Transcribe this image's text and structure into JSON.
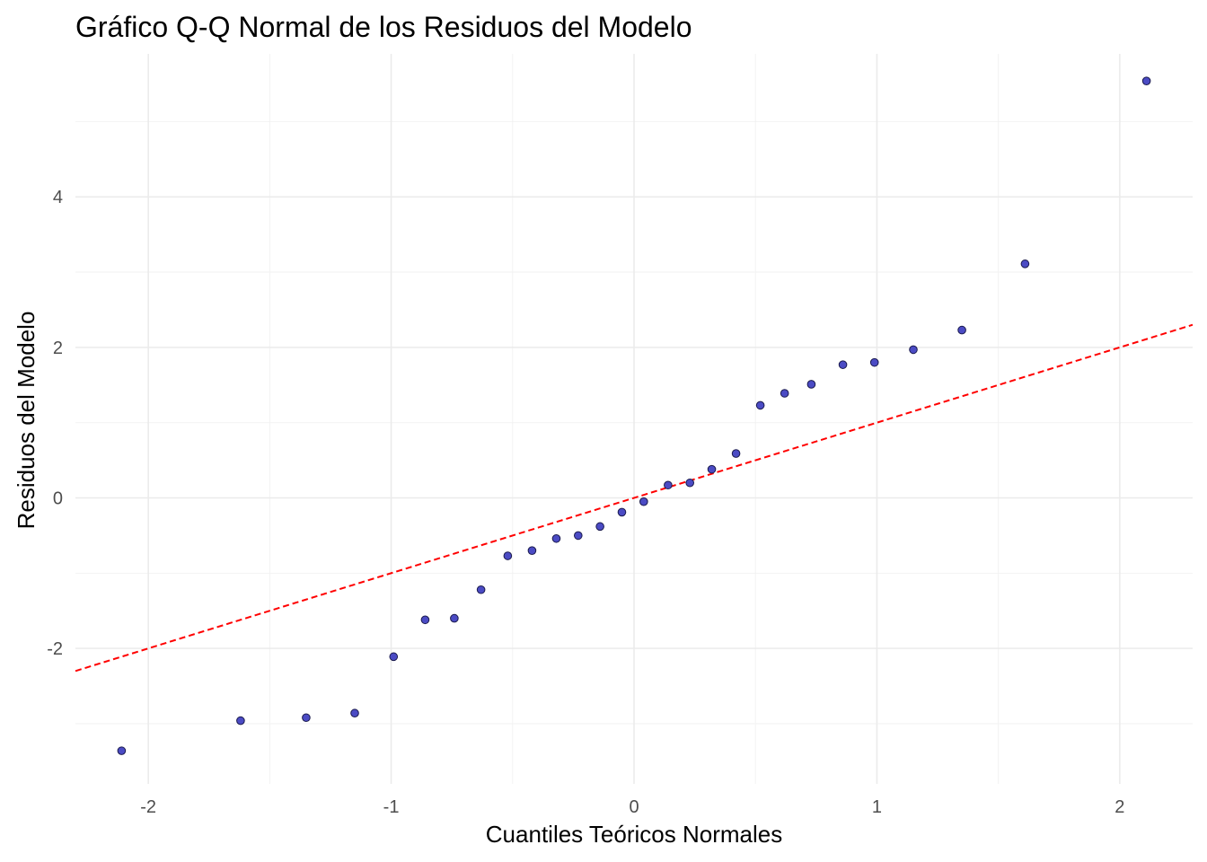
{
  "chart_data": {
    "type": "scatter",
    "title": "Gráfico Q-Q Normal de los Residuos del Modelo",
    "xlabel": "Cuantiles Teóricos Normales",
    "ylabel": "Residuos del Modelo",
    "xlim": [
      -2.3,
      2.3
    ],
    "ylim": [
      -3.8,
      5.9
    ],
    "x_ticks": [
      -2,
      -1,
      0,
      1,
      2
    ],
    "x_tick_labels": [
      "-2",
      "-1",
      "0",
      "1",
      "2"
    ],
    "y_ticks": [
      -2,
      0,
      2,
      4
    ],
    "y_tick_labels": [
      "-2",
      "0",
      "2",
      "4"
    ],
    "x_minor_ticks": [
      -1.5,
      -0.5,
      0.5,
      1.5
    ],
    "y_minor_ticks": [
      -3,
      -1,
      1,
      3,
      5
    ],
    "grid": true,
    "reference_line": {
      "intercept": 0,
      "slope": 1,
      "color": "#ff0000",
      "style": "dashed"
    },
    "point_color": "#4b4bc4",
    "points": [
      {
        "x": -2.11,
        "y": -3.36
      },
      {
        "x": -1.62,
        "y": -2.96
      },
      {
        "x": -1.35,
        "y": -2.92
      },
      {
        "x": -1.15,
        "y": -2.86
      },
      {
        "x": -0.99,
        "y": -2.11
      },
      {
        "x": -0.86,
        "y": -1.62
      },
      {
        "x": -0.74,
        "y": -1.6
      },
      {
        "x": -0.63,
        "y": -1.22
      },
      {
        "x": -0.52,
        "y": -0.77
      },
      {
        "x": -0.42,
        "y": -0.7
      },
      {
        "x": -0.32,
        "y": -0.54
      },
      {
        "x": -0.23,
        "y": -0.5
      },
      {
        "x": -0.14,
        "y": -0.38
      },
      {
        "x": -0.05,
        "y": -0.19
      },
      {
        "x": 0.04,
        "y": -0.05
      },
      {
        "x": 0.14,
        "y": 0.17
      },
      {
        "x": 0.23,
        "y": 0.2
      },
      {
        "x": 0.32,
        "y": 0.38
      },
      {
        "x": 0.42,
        "y": 0.59
      },
      {
        "x": 0.52,
        "y": 1.23
      },
      {
        "x": 0.62,
        "y": 1.39
      },
      {
        "x": 0.73,
        "y": 1.51
      },
      {
        "x": 0.86,
        "y": 1.77
      },
      {
        "x": 0.99,
        "y": 1.8
      },
      {
        "x": 1.15,
        "y": 1.97
      },
      {
        "x": 1.35,
        "y": 2.23
      },
      {
        "x": 1.61,
        "y": 3.11
      },
      {
        "x": 2.11,
        "y": 5.54
      }
    ]
  }
}
